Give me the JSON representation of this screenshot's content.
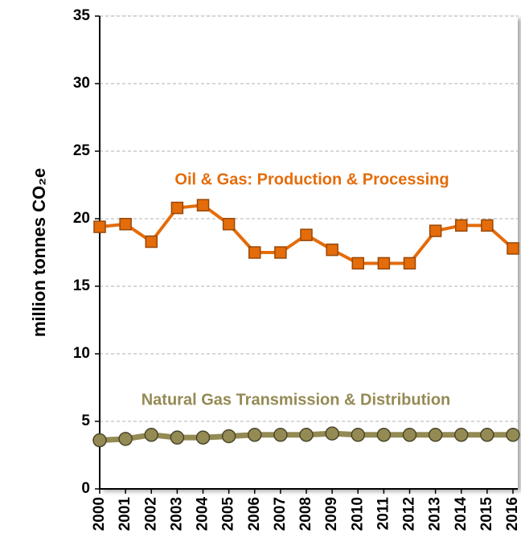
{
  "chart_data": {
    "type": "line",
    "y_axis_label": "million tonnes CO₂e",
    "x": [
      "2000",
      "2001",
      "2002",
      "2003",
      "2004",
      "2005",
      "2006",
      "2007",
      "2008",
      "2009",
      "2010",
      "2011",
      "2012",
      "2013",
      "2014",
      "2015",
      "2016"
    ],
    "series": [
      {
        "name": "Oil & Gas: Production & Processing",
        "color": "#e46c0a",
        "edge": "#984807",
        "values": [
          19.4,
          19.6,
          18.3,
          20.8,
          21.0,
          19.6,
          17.5,
          17.5,
          18.8,
          17.7,
          16.7,
          16.7,
          16.7,
          19.1,
          19.5,
          19.5,
          17.8
        ]
      },
      {
        "name": "Natural Gas Transmission & Distribution",
        "color": "#948a54",
        "edge": "#4a4529",
        "values": [
          3.6,
          3.7,
          4.0,
          3.8,
          3.8,
          3.9,
          4.0,
          4.0,
          4.0,
          4.1,
          4.0,
          4.0,
          4.0,
          4.0,
          4.0,
          4.0,
          4.0
        ]
      }
    ],
    "ylim": [
      0,
      35
    ],
    "yticks": [
      0,
      5,
      10,
      15,
      20,
      25,
      30,
      35
    ],
    "grid": true
  }
}
